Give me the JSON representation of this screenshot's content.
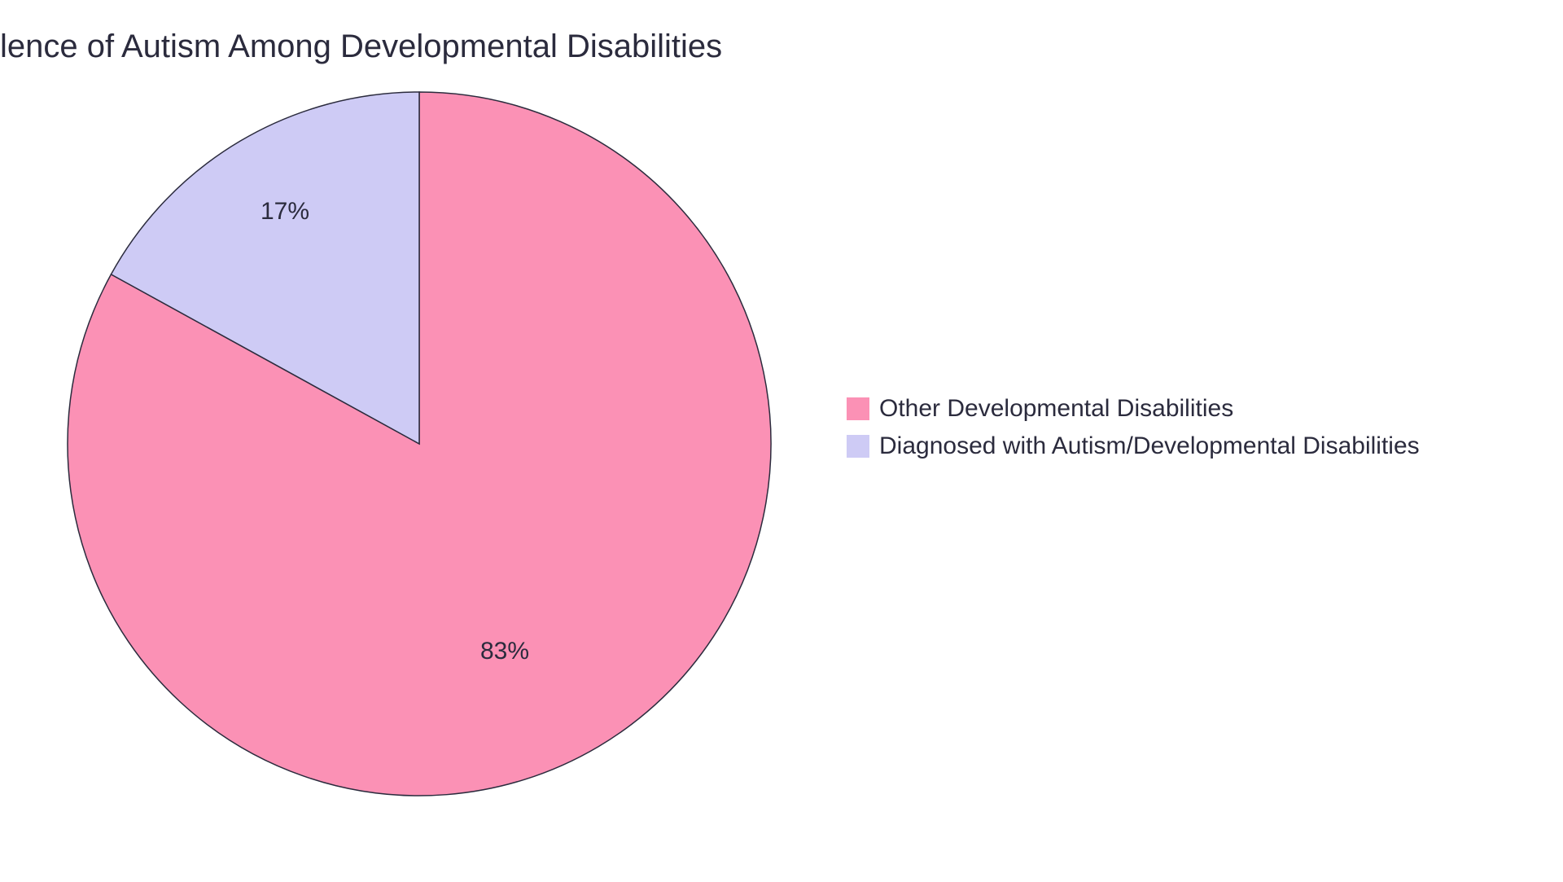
{
  "chart": {
    "type": "pie",
    "title": "lence of Autism Among Developmental Disabilities",
    "title_fontsize": 40,
    "title_color": "#2b2b3d",
    "background_color": "#ffffff",
    "stroke_color": "#2b2b3d",
    "stroke_width": 1.5,
    "label_fontsize": 30,
    "label_color": "#2b2b3d",
    "legend_fontsize": 30,
    "legend_color": "#2b2b3d",
    "slices": [
      {
        "label": "Other Developmental Disabilities",
        "value": 83,
        "display": "83%",
        "color": "#fb91b5"
      },
      {
        "label": "Diagnosed with Autism/Developmental Disabilities",
        "value": 17,
        "display": "17%",
        "color": "#cecbf5"
      }
    ]
  }
}
